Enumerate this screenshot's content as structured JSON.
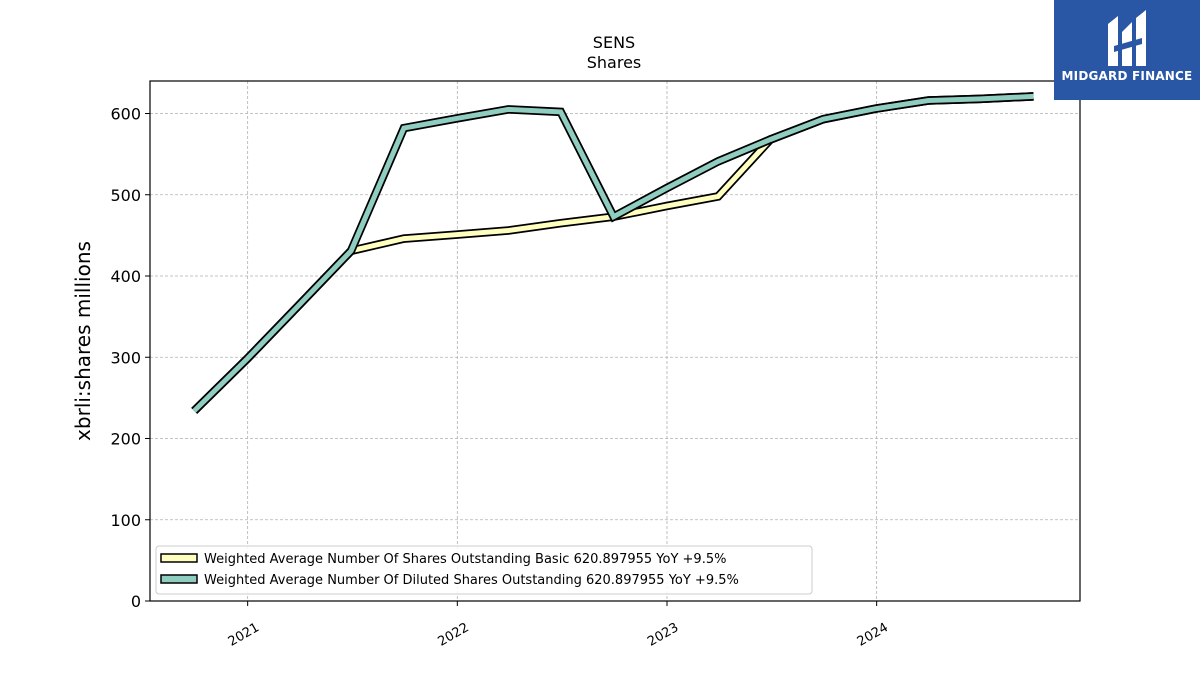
{
  "logo": {
    "text": "MIDGARD FINANCE",
    "background": "#2a57a5"
  },
  "chart_data": {
    "type": "line",
    "title": "SENS",
    "subtitle": "Shares",
    "xlabel": "",
    "ylabel": "xbrli:shares millions",
    "ylim": [
      0,
      640
    ],
    "yticks": [
      0,
      100,
      200,
      300,
      400,
      500,
      600
    ],
    "xlim": [
      "2020-07-15",
      "2024-12-20"
    ],
    "xticks": [
      "2021",
      "2022",
      "2023",
      "2024"
    ],
    "grid": true,
    "legend_position": "lower-left",
    "series": [
      {
        "name": "Weighted Average Number Of Shares Outstanding Basic",
        "legend_label": "Weighted Average Number Of Shares Outstanding Basic  620.897955 YoY +9.5%",
        "color": "#ffffbf",
        "x": [
          "2020-09-30",
          "2020-12-31",
          "2021-03-31",
          "2021-06-30",
          "2021-09-30",
          "2021-12-31",
          "2022-03-31",
          "2022-06-30",
          "2022-09-30",
          "2022-12-31",
          "2023-03-31",
          "2023-06-30",
          "2023-09-30",
          "2023-12-31",
          "2024-03-31",
          "2024-06-30",
          "2024-09-30"
        ],
        "y": [
          234,
          298,
          364,
          431,
          446,
          451,
          456,
          465,
          473,
          486,
          498,
          568,
          593,
          606,
          616,
          618,
          621
        ]
      },
      {
        "name": "Weighted Average Number Of Diluted Shares Outstanding",
        "legend_label": "Weighted Average Number Of Diluted Shares Outstanding  620.897955 YoY +9.5%",
        "color": "#8ecdc0",
        "x": [
          "2020-09-30",
          "2020-12-31",
          "2021-03-31",
          "2021-06-30",
          "2021-09-30",
          "2021-12-31",
          "2022-03-31",
          "2022-06-30",
          "2022-09-30",
          "2022-12-31",
          "2023-03-31",
          "2023-06-30",
          "2023-09-30",
          "2023-12-31",
          "2024-03-31",
          "2024-06-30",
          "2024-09-30"
        ],
        "y": [
          234,
          298,
          364,
          431,
          582,
          594,
          605,
          602,
          473,
          508,
          541,
          568,
          593,
          606,
          616,
          618,
          621
        ]
      }
    ]
  }
}
